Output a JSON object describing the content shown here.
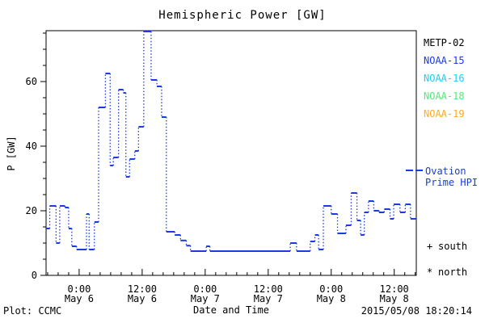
{
  "title": "Hemispheric Power [GW]",
  "ylabel": "P [GW]",
  "xlabel": "Date and Time",
  "footer": {
    "plot_credit": "Plot: CCMC",
    "timestamp": "2015/05/08 18:20:14"
  },
  "legend": {
    "satellites": [
      {
        "label": "METP-02",
        "color": "#000000"
      },
      {
        "label": "NOAA-15",
        "color": "#1a3be0"
      },
      {
        "label": "NOAA-16",
        "color": "#22ccee"
      },
      {
        "label": "NOAA-18",
        "color": "#55e878"
      },
      {
        "label": "NOAA-19",
        "color": "#ffaa22"
      }
    ],
    "line_sample_color": "#1a3be0",
    "line_label_line1": "Ovation",
    "line_label_line2": "Prime HPI",
    "markers": [
      {
        "symbol": "+",
        "label": "south"
      },
      {
        "symbol": "*",
        "label": "north"
      }
    ]
  },
  "chart_data": {
    "type": "line",
    "subtype": "step-dashed",
    "title": "Hemispheric Power [GW]",
    "xlabel": "Date and Time",
    "ylabel": "P [GW]",
    "line_color": "#1a3be0",
    "axis_color": "#000000",
    "grid": false,
    "legend_position": "right-outside",
    "x_unit": "hours since 2015-05-06 00:00 UT",
    "xlim": [
      -6.3,
      64.2
    ],
    "ylim": [
      0,
      75.75
    ],
    "yticks": [
      0,
      20,
      40,
      60
    ],
    "y_minor_step": 5,
    "x_minor_step": 2,
    "xticks": [
      {
        "t": 0,
        "time": "0:00",
        "date": "May 6"
      },
      {
        "t": 12,
        "time": "12:00",
        "date": "May 6"
      },
      {
        "t": 24,
        "time": "0:00",
        "date": "May 7"
      },
      {
        "t": 36,
        "time": "12:00",
        "date": "May 7"
      },
      {
        "t": 48,
        "time": "0:00",
        "date": "May 8"
      },
      {
        "t": 60,
        "time": "12:00",
        "date": "May 8"
      }
    ],
    "series": [
      {
        "name": "Ovation Prime HPI",
        "steps_t_hours_value_gw": [
          [
            -6.3,
            14.5
          ],
          [
            -5.6,
            21.5
          ],
          [
            -4.4,
            10.0
          ],
          [
            -3.7,
            21.5
          ],
          [
            -2.7,
            21.0
          ],
          [
            -2.0,
            14.5
          ],
          [
            -1.4,
            9.0
          ],
          [
            -0.5,
            8.0
          ],
          [
            1.4,
            19.0
          ],
          [
            1.9,
            8.0
          ],
          [
            2.9,
            16.5
          ],
          [
            3.7,
            52.0
          ],
          [
            5.0,
            62.5
          ],
          [
            5.9,
            34.0
          ],
          [
            6.5,
            36.5
          ],
          [
            7.5,
            57.5
          ],
          [
            8.4,
            56.5
          ],
          [
            8.9,
            30.5
          ],
          [
            9.6,
            36.0
          ],
          [
            10.6,
            38.5
          ],
          [
            11.3,
            46.0
          ],
          [
            12.3,
            75.5
          ],
          [
            13.7,
            60.5
          ],
          [
            14.8,
            58.5
          ],
          [
            15.7,
            49.0
          ],
          [
            16.6,
            13.5
          ],
          [
            18.2,
            12.5
          ],
          [
            19.3,
            10.8
          ],
          [
            20.4,
            9.2
          ],
          [
            21.2,
            7.5
          ],
          [
            24.2,
            9.0
          ],
          [
            24.9,
            7.5
          ],
          [
            40.2,
            10.0
          ],
          [
            41.4,
            7.5
          ],
          [
            44.0,
            10.5
          ],
          [
            44.9,
            12.5
          ],
          [
            45.6,
            8.0
          ],
          [
            46.5,
            21.5
          ],
          [
            48.0,
            19.0
          ],
          [
            49.2,
            13.0
          ],
          [
            50.8,
            15.5
          ],
          [
            51.8,
            25.5
          ],
          [
            52.9,
            17.0
          ],
          [
            53.6,
            12.5
          ],
          [
            54.3,
            19.5
          ],
          [
            55.1,
            23.0
          ],
          [
            56.1,
            20.0
          ],
          [
            57.1,
            19.5
          ],
          [
            58.1,
            20.5
          ],
          [
            59.2,
            17.5
          ],
          [
            59.9,
            22.0
          ],
          [
            61.1,
            19.5
          ],
          [
            62.1,
            22.0
          ],
          [
            63.1,
            17.5
          ]
        ]
      }
    ]
  }
}
